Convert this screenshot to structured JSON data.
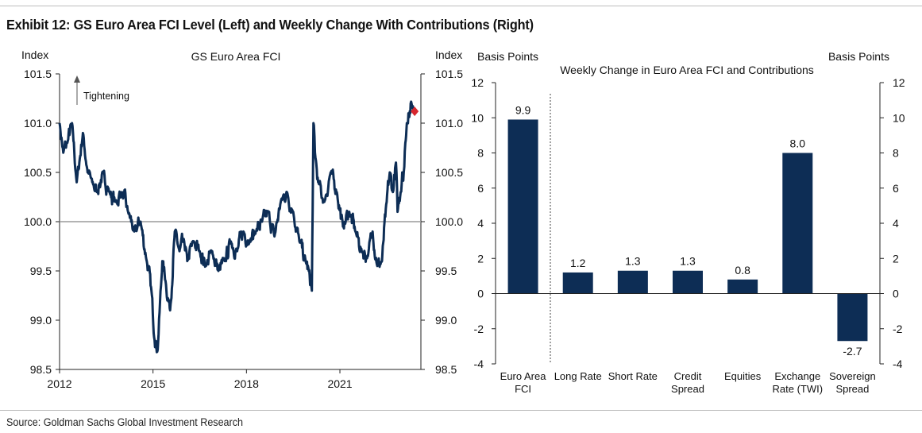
{
  "exhibit_title": "Exhibit 12: GS Euro Area FCI Level (Left) and Weekly Change With Contributions (Right)",
  "source": "Source: Goldman Sachs Global Investment Research",
  "colors": {
    "navy": "#0d2d55",
    "marker": "#d7262d",
    "axis": "#222222",
    "baseline": "#9a9a9a",
    "rule": "#bdbdbd"
  },
  "chart_data": [
    {
      "type": "line",
      "title": "GS Euro Area FCI",
      "ylabel_left": "Index",
      "ylabel_right": "Index",
      "annotation": "Tightening",
      "ylim": [
        98.5,
        101.5
      ],
      "yticks": [
        "101.5",
        "101.0",
        "100.5",
        "100.0",
        "99.5",
        "99.0",
        "98.5"
      ],
      "xlim": [
        2012,
        2023.6
      ],
      "xticks": [
        "2012",
        "2015",
        "2018",
        "2021"
      ],
      "baseline": 100.0,
      "series": [
        {
          "name": "GS Euro Area FCI",
          "x": [
            2012.0,
            2012.12,
            2012.25,
            2012.4,
            2012.55,
            2012.75,
            2012.9,
            2013.05,
            2013.2,
            2013.4,
            2013.6,
            2013.8,
            2014.0,
            2014.2,
            2014.4,
            2014.6,
            2014.8,
            2014.95,
            2015.05,
            2015.15,
            2015.3,
            2015.4,
            2015.55,
            2015.7,
            2015.85,
            2016.0,
            2016.1,
            2016.3,
            2016.5,
            2016.7,
            2016.9,
            2017.1,
            2017.3,
            2017.5,
            2017.7,
            2017.9,
            2018.1,
            2018.3,
            2018.5,
            2018.7,
            2018.9,
            2019.1,
            2019.3,
            2019.5,
            2019.7,
            2019.9,
            2020.0,
            2020.1,
            2020.15,
            2020.2,
            2020.3,
            2020.5,
            2020.7,
            2020.9,
            2021.1,
            2021.3,
            2021.5,
            2021.7,
            2021.9,
            2022.05,
            2022.2,
            2022.35,
            2022.5,
            2022.6,
            2022.7,
            2022.8,
            2022.85,
            2022.95,
            2023.0,
            2023.05,
            2023.1,
            2023.15,
            2023.2,
            2023.3,
            2023.4
          ],
          "values": [
            101.0,
            100.7,
            100.8,
            101.0,
            100.4,
            100.9,
            100.5,
            100.4,
            100.3,
            100.5,
            100.3,
            100.2,
            100.3,
            100.1,
            99.9,
            100.0,
            99.6,
            99.3,
            98.8,
            98.7,
            99.6,
            99.4,
            99.1,
            99.9,
            99.7,
            99.8,
            99.6,
            99.8,
            99.7,
            99.55,
            99.7,
            99.5,
            99.6,
            99.8,
            99.7,
            99.9,
            99.8,
            99.9,
            100.0,
            100.1,
            99.85,
            100.2,
            100.3,
            100.1,
            99.8,
            99.6,
            99.5,
            99.3,
            101.0,
            100.7,
            100.4,
            100.2,
            100.5,
            100.3,
            99.95,
            100.1,
            99.9,
            99.7,
            99.65,
            99.9,
            99.55,
            99.6,
            100.2,
            100.5,
            100.3,
            100.6,
            100.1,
            100.3,
            100.5,
            100.5,
            100.8,
            101.0,
            101.1,
            101.2,
            101.1
          ]
        }
      ],
      "latest_point": {
        "x": 2023.4,
        "value": 101.12
      }
    },
    {
      "type": "bar",
      "title": "Weekly Change in Euro Area FCI and Contributions",
      "ylabel_left": "Basis Points",
      "ylabel_right": "Basis Points",
      "ylim": [
        -4,
        12
      ],
      "yticks": [
        "12",
        "10",
        "8",
        "6",
        "4",
        "2",
        "0",
        "-2",
        "-4"
      ],
      "categories": [
        [
          "Euro Area",
          "FCI"
        ],
        [
          "Long Rate"
        ],
        [
          "Short Rate"
        ],
        [
          "Credit",
          "Spread"
        ],
        [
          "Equities"
        ],
        [
          "Exchange",
          "Rate (TWI)"
        ],
        [
          "Sovereign",
          "Spread"
        ]
      ],
      "values": [
        9.9,
        1.2,
        1.3,
        1.3,
        0.8,
        8.0,
        -2.7
      ],
      "value_labels": [
        "9.9",
        "1.2",
        "1.3",
        "1.3",
        "0.8",
        "8.0",
        "-2.7"
      ]
    }
  ]
}
